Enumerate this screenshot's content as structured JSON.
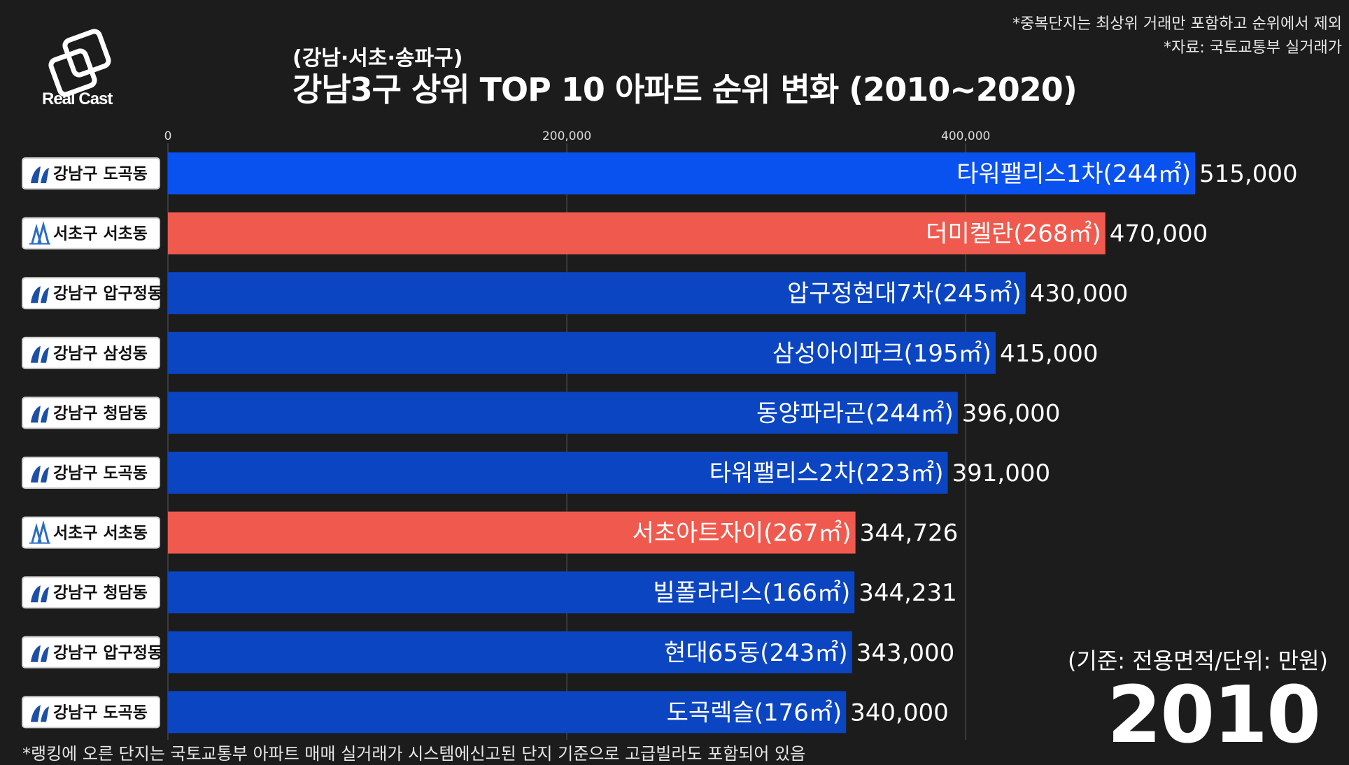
{
  "brand": {
    "name": "Real Cast"
  },
  "header": {
    "subtitle": "(강남·서초·송파구)",
    "title": "강남3구 상위 TOP 10 아파트 순위 변화 (2010~2020)"
  },
  "notes": {
    "line1": "*중복단지는 최상위 거래만 포함하고 순위에서 제외",
    "line2": "*자료: 국토교통부 실거래가"
  },
  "unit_label": "(기준: 전용면적/단위: 만원)",
  "year": "2010",
  "footer": "*랭킹에 오른 단지는 국토교통부 아파트 매매 실거래가 시스템에신고된 단지 기준으로 고급빌라도 포함되어 있음",
  "colors": {
    "background": "#1c1c1c",
    "top_bar": "#0a52f0",
    "gangnam": "#0b45c2",
    "seocho": "#f05a4e",
    "grid": "#5a5a5a"
  },
  "chart_data": {
    "type": "bar",
    "orientation": "horizontal",
    "xlim": [
      0,
      515000
    ],
    "ticks": [
      0,
      200000,
      400000
    ],
    "tick_labels": [
      "0",
      "200,000",
      "400,000"
    ],
    "rows": [
      {
        "district": "강남구 도곡동",
        "name": "타워팰리스1차(244㎡)",
        "value": 515000,
        "value_label": "515,000",
        "color": "#0a52f0",
        "group": "gangnam"
      },
      {
        "district": "서초구 서초동",
        "name": "더미켈란(268㎡)",
        "value": 470000,
        "value_label": "470,000",
        "color": "#f05a4e",
        "group": "seocho"
      },
      {
        "district": "강남구 압구정동",
        "name": "압구정현대7차(245㎡)",
        "value": 430000,
        "value_label": "430,000",
        "color": "#0b45c2",
        "group": "gangnam"
      },
      {
        "district": "강남구 삼성동",
        "name": "삼성아이파크(195㎡)",
        "value": 415000,
        "value_label": "415,000",
        "color": "#0b45c2",
        "group": "gangnam"
      },
      {
        "district": "강남구 청담동",
        "name": "동양파라곤(244㎡)",
        "value": 396000,
        "value_label": "396,000",
        "color": "#0b45c2",
        "group": "gangnam"
      },
      {
        "district": "강남구 도곡동",
        "name": "타워팰리스2차(223㎡)",
        "value": 391000,
        "value_label": "391,000",
        "color": "#0b45c2",
        "group": "gangnam"
      },
      {
        "district": "서초구 서초동",
        "name": "서초아트자이(267㎡)",
        "value": 344726,
        "value_label": "344,726",
        "color": "#f05a4e",
        "group": "seocho"
      },
      {
        "district": "강남구 청담동",
        "name": "빌폴라리스(166㎡)",
        "value": 344231,
        "value_label": "344,231",
        "color": "#0b45c2",
        "group": "gangnam"
      },
      {
        "district": "강남구 압구정동",
        "name": "현대65동(243㎡)",
        "value": 343000,
        "value_label": "343,000",
        "color": "#0b45c2",
        "group": "gangnam"
      },
      {
        "district": "강남구 도곡동",
        "name": "도곡렉슬(176㎡)",
        "value": 340000,
        "value_label": "340,000",
        "color": "#0b45c2",
        "group": "gangnam"
      }
    ]
  }
}
